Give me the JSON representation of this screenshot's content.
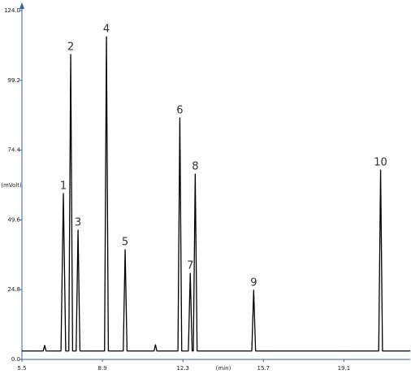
{
  "chart_data": {
    "type": "line",
    "xlabel": "(min)",
    "ylabel": "(mVolt)",
    "x": [
      5.5,
      6.4,
      6.46,
      6.52,
      7.15,
      7.25,
      7.35,
      7.48,
      7.56,
      7.64,
      7.79,
      7.87,
      7.95,
      8.99,
      9.07,
      9.15,
      9.78,
      9.86,
      9.94,
      11.08,
      11.14,
      11.2,
      12.09,
      12.17,
      12.25,
      12.53,
      12.61,
      12.69,
      12.74,
      12.82,
      12.9,
      15.21,
      15.29,
      15.37,
      20.57,
      20.65,
      20.73,
      21.9
    ],
    "series": [
      {
        "color": "#000000",
        "values": [
          3,
          3,
          5,
          3,
          3,
          59.0,
          3,
          3,
          108.4,
          3,
          3,
          46.0,
          3,
          3,
          114.7,
          3,
          3,
          39.0,
          3,
          3,
          5.2,
          3,
          3,
          85.8,
          3,
          3,
          30.6,
          3,
          3,
          65.9,
          3,
          3,
          24.6,
          3,
          3,
          67.3,
          3,
          3
        ]
      }
    ],
    "annotations": [
      {
        "text": "1",
        "x": 7.25,
        "y": 59.0
      },
      {
        "text": "2",
        "x": 7.56,
        "y": 108.4
      },
      {
        "text": "3",
        "x": 7.87,
        "y": 46.0
      },
      {
        "text": "4",
        "x": 9.07,
        "y": 114.7
      },
      {
        "text": "5",
        "x": 9.86,
        "y": 39.0
      },
      {
        "text": "6",
        "x": 12.17,
        "y": 85.8
      },
      {
        "text": "7",
        "x": 12.61,
        "y": 30.6
      },
      {
        "text": "8",
        "x": 12.82,
        "y": 65.9
      },
      {
        "text": "9",
        "x": 15.29,
        "y": 24.6
      },
      {
        "text": "10",
        "x": 20.65,
        "y": 67.3
      }
    ],
    "xlim": [
      5.5,
      21.9
    ],
    "ylim": [
      0,
      124
    ],
    "xticks": [
      5.5,
      8.9,
      12.3,
      15.7,
      19.1
    ],
    "yticks": [
      {
        "value": 0,
        "label": "0.0"
      },
      24.8,
      49.6,
      74.4,
      99.2,
      {
        "value": 124,
        "label": "124.0"
      }
    ],
    "axis_color": "#3a5bb0"
  }
}
